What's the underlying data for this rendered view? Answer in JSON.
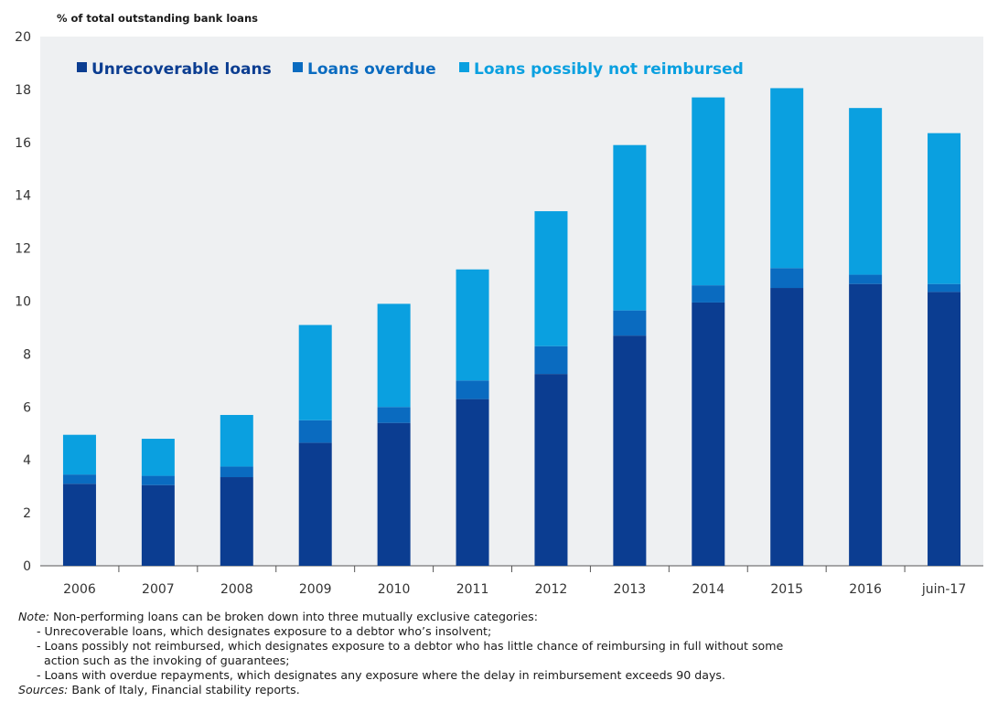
{
  "chart_data": {
    "type": "bar",
    "stacked": true,
    "ylabel": "% of total outstanding bank loans",
    "ylim": [
      0,
      20
    ],
    "yticks": [
      0,
      2,
      4,
      6,
      8,
      10,
      12,
      14,
      16,
      18,
      20
    ],
    "categories": [
      "2006",
      "2007",
      "2008",
      "2009",
      "2010",
      "2011",
      "2012",
      "2013",
      "2014",
      "2015",
      "2016",
      "juin-17"
    ],
    "series": [
      {
        "name": "Unrecoverable loans",
        "color": "#0b3d91",
        "values": [
          3.1,
          3.05,
          3.35,
          4.65,
          5.4,
          6.3,
          7.25,
          8.7,
          9.95,
          10.5,
          10.65,
          10.35
        ]
      },
      {
        "name": "Loans overdue",
        "color": "#0a6bc0",
        "values": [
          0.35,
          0.35,
          0.4,
          0.85,
          0.6,
          0.7,
          1.05,
          0.95,
          0.65,
          0.75,
          0.35,
          0.3
        ]
      },
      {
        "name": "Loans possibly not reimbursed",
        "color": "#0aa0e0",
        "values": [
          1.5,
          1.4,
          1.95,
          3.6,
          3.9,
          4.2,
          5.1,
          6.25,
          7.1,
          6.8,
          6.3,
          5.7
        ]
      }
    ],
    "legend_position": "top-left",
    "grid": false
  },
  "notes": {
    "note_label": "Note:",
    "note_text": " Non-performing loans can be broken down into three mutually exclusive categories:",
    "items": [
      "- Unrecoverable loans, which designates exposure to a debtor who’s insolvent;",
      "- Loans possibly not reimbursed, which designates exposure to a debtor who has little chance of reimbursing in full without some",
      "action such as the invoking of guarantees;",
      "- Loans with overdue repayments, which designates any exposure where the delay in reimbursement exceeds 90 days."
    ],
    "sources_label": "Sources:",
    "sources_text": " Bank of Italy, Financial stability reports."
  }
}
